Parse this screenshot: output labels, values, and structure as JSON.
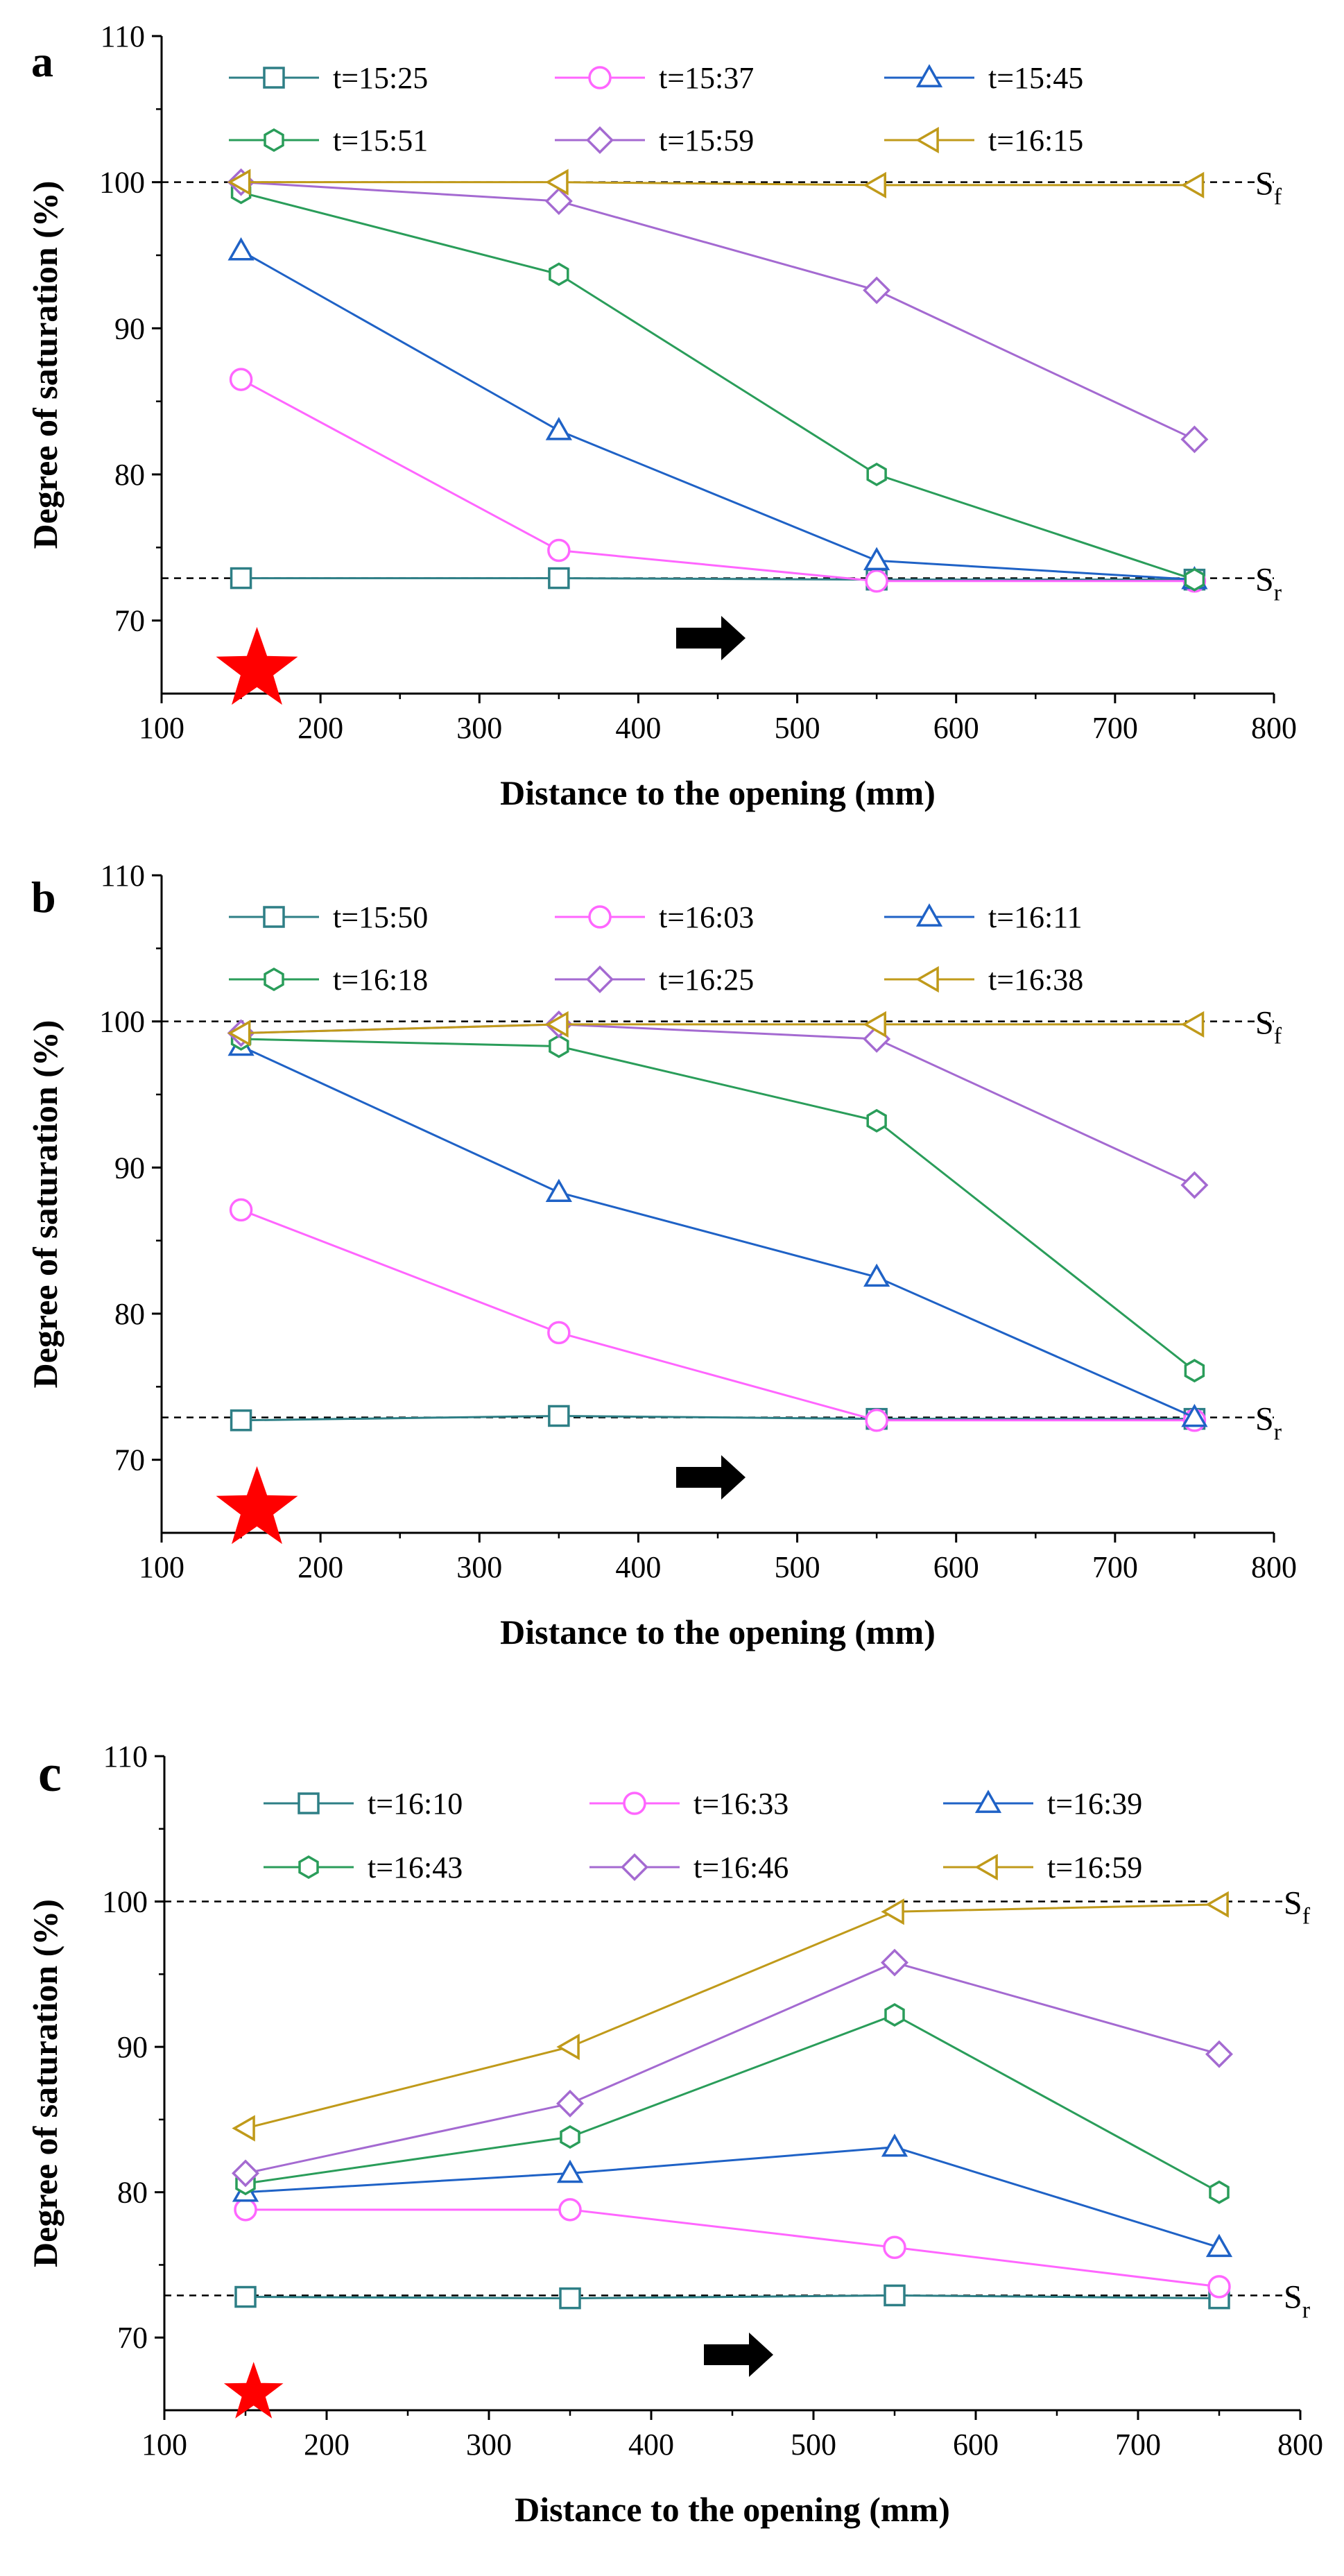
{
  "colors": {
    "axis": "#000000",
    "refline": "#000000",
    "star": "#ff0000",
    "arrow": "#000000"
  },
  "chart_data": [
    {
      "type": "line",
      "panel_label": "a",
      "xlabel": "Distance to the opening (mm)",
      "ylabel": "Degree of saturation (%)",
      "xlim": [
        100,
        800
      ],
      "ylim": [
        65,
        110
      ],
      "xticks": [
        "100",
        "200",
        "300",
        "400",
        "500",
        "600",
        "700",
        "800"
      ],
      "yticks": [
        "70",
        "80",
        "90",
        "100",
        "110"
      ],
      "x": [
        150,
        350,
        550,
        750
      ],
      "ref_lines": [
        {
          "name": "Sf",
          "value": 100,
          "label": "S",
          "sub": "f"
        },
        {
          "name": "Sr",
          "value": 72.9,
          "label": "S",
          "sub": "r"
        }
      ],
      "star_x": 160,
      "arrow_label": "flow direction",
      "series": [
        {
          "name": "t=15:25",
          "marker": "square",
          "color": "#2e7f86",
          "values": [
            72.9,
            72.9,
            72.8,
            72.8
          ]
        },
        {
          "name": "t=15:37",
          "marker": "circle",
          "color": "#ff66ff",
          "values": [
            86.5,
            74.8,
            72.7,
            72.7
          ]
        },
        {
          "name": "t=15:45",
          "marker": "triangle-up",
          "color": "#1f62c6",
          "values": [
            95.3,
            83.0,
            74.1,
            72.8
          ]
        },
        {
          "name": "t=15:51",
          "marker": "hexagon",
          "color": "#2a9d5a",
          "values": [
            99.3,
            93.7,
            80.0,
            72.8
          ]
        },
        {
          "name": "t=15:59",
          "marker": "diamond",
          "color": "#a46ad1",
          "values": [
            100.0,
            98.7,
            92.6,
            82.4
          ]
        },
        {
          "name": "t=16:15",
          "marker": "triangle-left",
          "color": "#c09a1a",
          "values": [
            100.0,
            100.0,
            99.8,
            99.8
          ]
        }
      ]
    },
    {
      "type": "line",
      "panel_label": "b",
      "xlabel": "Distance to the opening (mm)",
      "ylabel": "Degree of saturation (%)",
      "xlim": [
        100,
        800
      ],
      "ylim": [
        65,
        110
      ],
      "xticks": [
        "100",
        "200",
        "300",
        "400",
        "500",
        "600",
        "700",
        "800"
      ],
      "yticks": [
        "70",
        "80",
        "90",
        "100",
        "110"
      ],
      "x": [
        150,
        350,
        550,
        750
      ],
      "ref_lines": [
        {
          "name": "Sf",
          "value": 100,
          "label": "S",
          "sub": "f"
        },
        {
          "name": "Sr",
          "value": 72.9,
          "label": "S",
          "sub": "r"
        }
      ],
      "star_x": 160,
      "arrow_label": "flow direction",
      "series": [
        {
          "name": "t=15:50",
          "marker": "square",
          "color": "#2e7f86",
          "values": [
            72.7,
            73.0,
            72.8,
            72.8
          ]
        },
        {
          "name": "t=16:03",
          "marker": "circle",
          "color": "#ff66ff",
          "values": [
            87.1,
            78.7,
            72.7,
            72.7
          ]
        },
        {
          "name": "t=16:11",
          "marker": "triangle-up",
          "color": "#1f62c6",
          "values": [
            98.3,
            88.3,
            82.5,
            72.9
          ]
        },
        {
          "name": "t=16:18",
          "marker": "hexagon",
          "color": "#2a9d5a",
          "values": [
            98.8,
            98.3,
            93.2,
            76.1
          ]
        },
        {
          "name": "t=16:25",
          "marker": "diamond",
          "color": "#a46ad1",
          "values": [
            99.2,
            99.8,
            98.8,
            88.8
          ]
        },
        {
          "name": "t=16:38",
          "marker": "triangle-left",
          "color": "#c09a1a",
          "values": [
            99.2,
            99.8,
            99.8,
            99.8
          ]
        }
      ]
    },
    {
      "type": "line",
      "panel_label": "c",
      "xlabel": "Distance to the opening (mm)",
      "ylabel": "Degree of saturation (%)",
      "xlim": [
        100,
        800
      ],
      "ylim": [
        65,
        110
      ],
      "xticks": [
        "100",
        "200",
        "300",
        "400",
        "500",
        "600",
        "700",
        "800"
      ],
      "yticks": [
        "70",
        "80",
        "90",
        "100",
        "110"
      ],
      "x": [
        150,
        350,
        550,
        750
      ],
      "ref_lines": [
        {
          "name": "Sf",
          "value": 100,
          "label": "S",
          "sub": "f"
        },
        {
          "name": "Sr",
          "value": 72.9,
          "label": "S",
          "sub": "r"
        }
      ],
      "star_x": 155,
      "arrow_label": "flow direction",
      "series": [
        {
          "name": "t=16:10",
          "marker": "square",
          "color": "#2e7f86",
          "values": [
            72.8,
            72.7,
            72.9,
            72.7
          ]
        },
        {
          "name": "t=16:33",
          "marker": "circle",
          "color": "#ff66ff",
          "values": [
            78.8,
            78.8,
            76.2,
            73.5
          ]
        },
        {
          "name": "t=16:39",
          "marker": "triangle-up",
          "color": "#1f62c6",
          "values": [
            80.0,
            81.3,
            83.1,
            76.2
          ]
        },
        {
          "name": "t=16:43",
          "marker": "hexagon",
          "color": "#2a9d5a",
          "values": [
            80.6,
            83.8,
            92.2,
            80.0
          ]
        },
        {
          "name": "t=16:46",
          "marker": "diamond",
          "color": "#a46ad1",
          "values": [
            81.3,
            86.1,
            95.8,
            89.5
          ]
        },
        {
          "name": "t=16:59",
          "marker": "triangle-left",
          "color": "#c09a1a",
          "values": [
            84.4,
            90.0,
            99.3,
            99.8
          ]
        }
      ]
    }
  ]
}
